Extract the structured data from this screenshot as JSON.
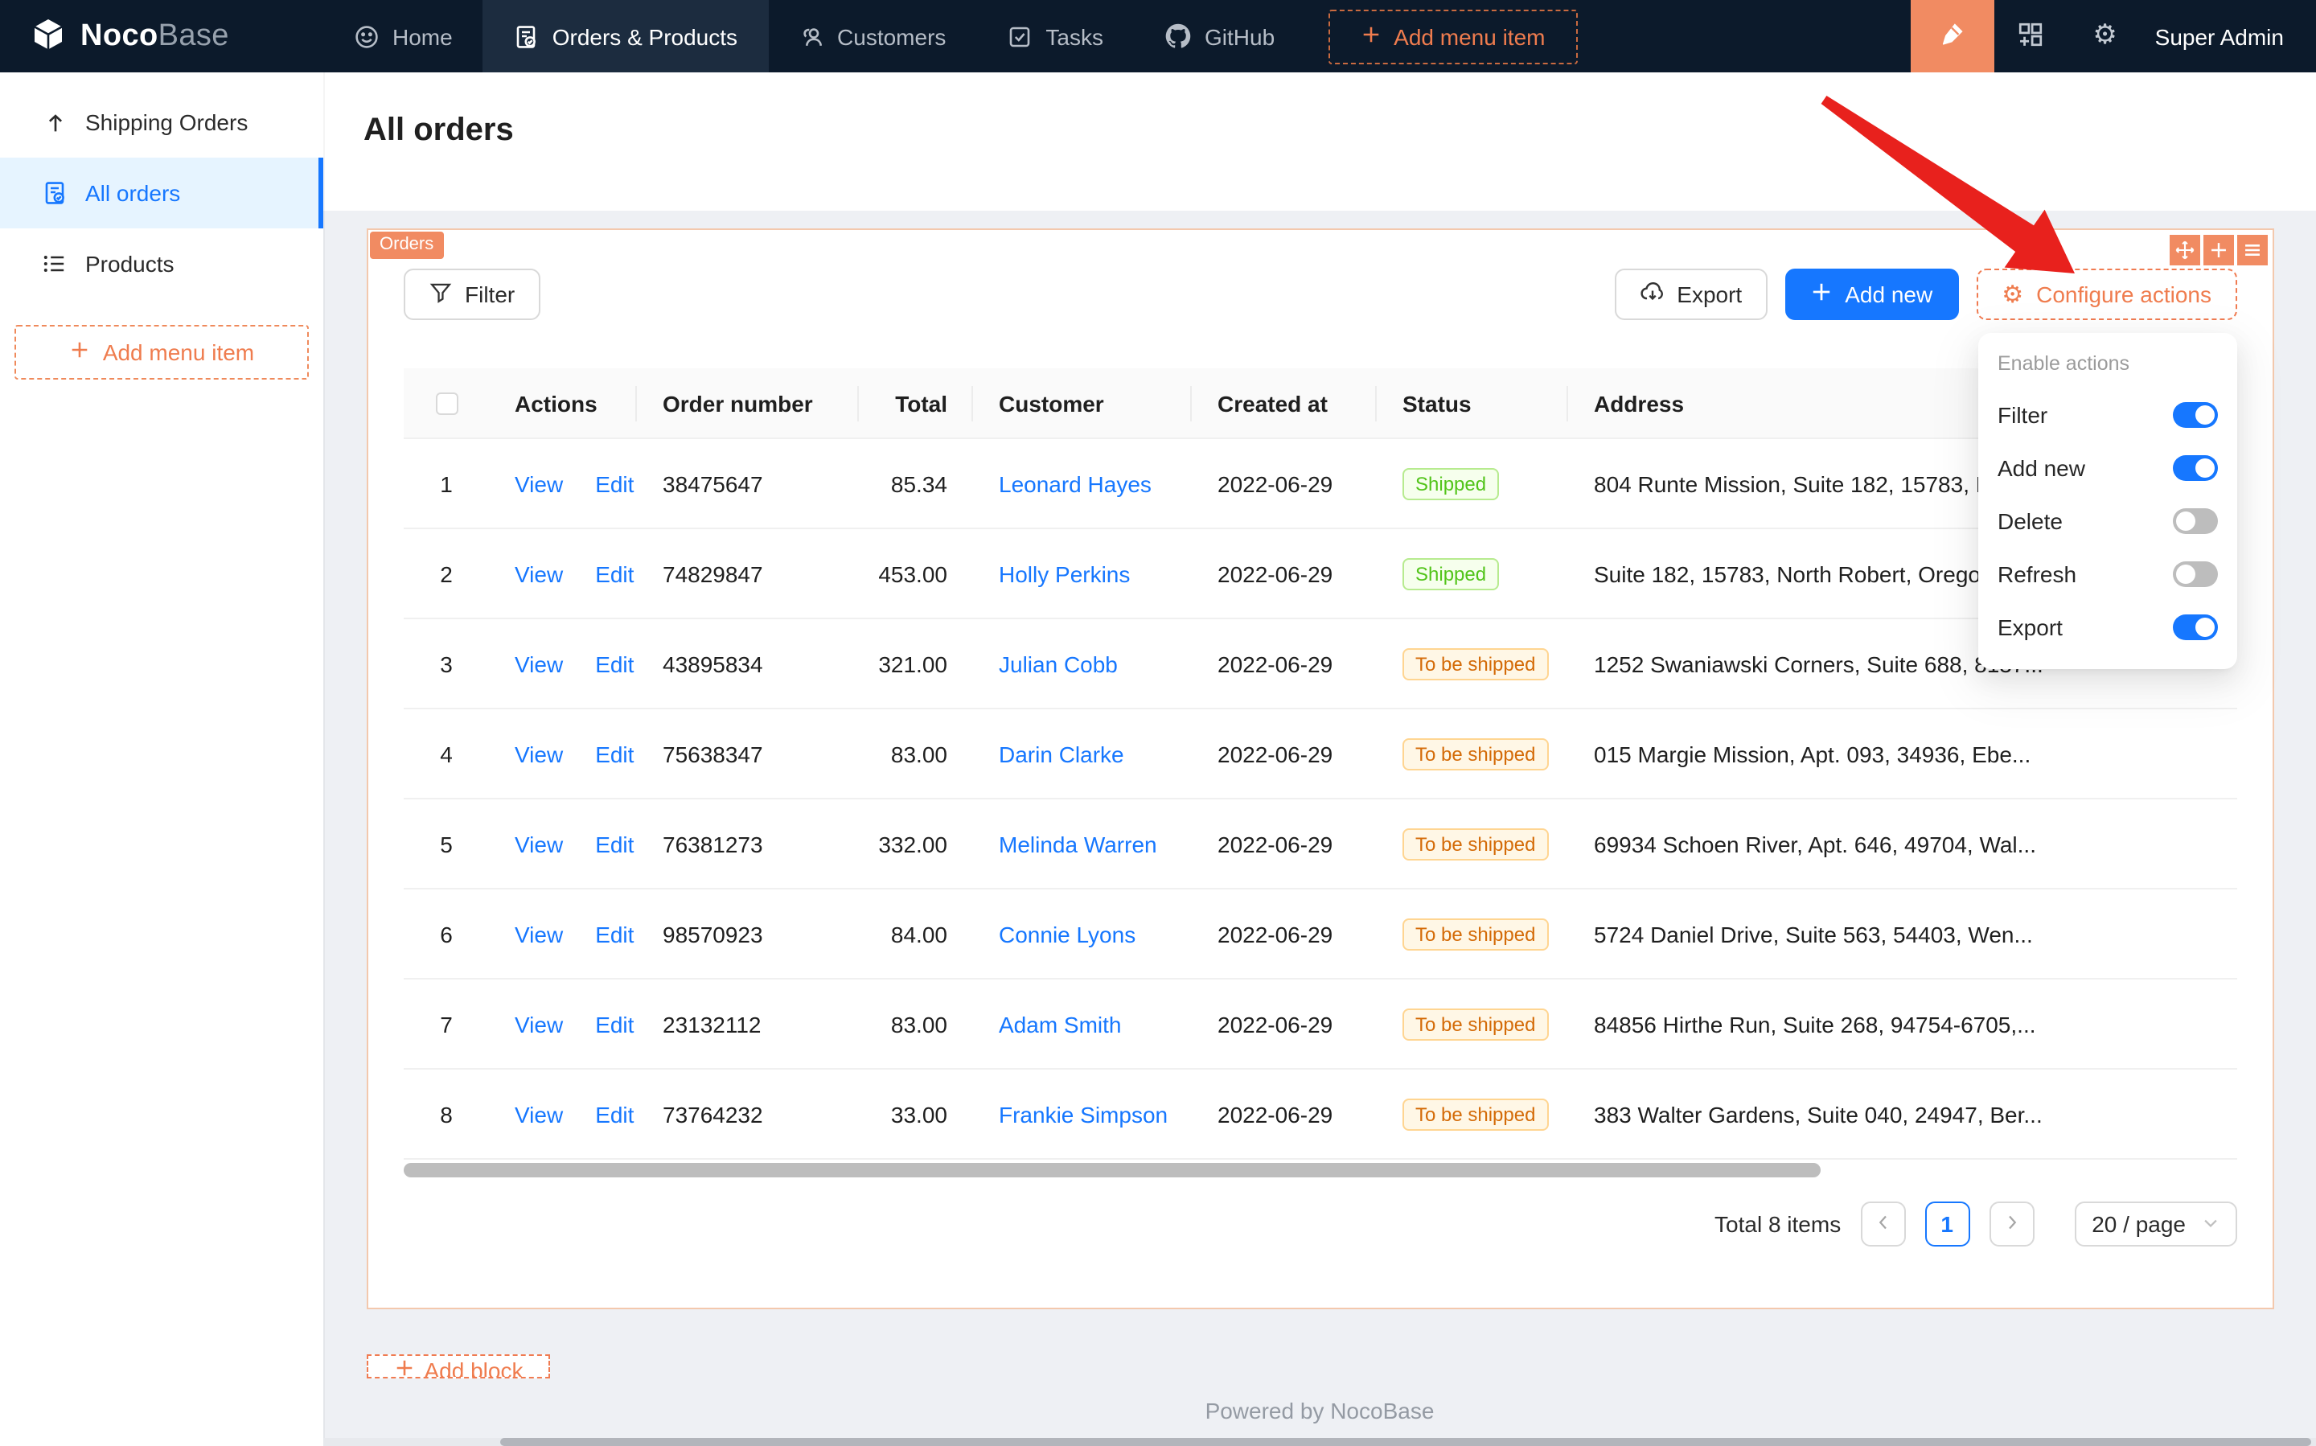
{
  "nav": {
    "logo": {
      "bold": "Noco",
      "light": "Base"
    },
    "items": [
      {
        "label": "Home",
        "icon": "smiley-icon",
        "active": false
      },
      {
        "label": "Orders & Products",
        "icon": "order-doc-icon",
        "active": true
      },
      {
        "label": "Customers",
        "icon": "people-icon",
        "active": false
      },
      {
        "label": "Tasks",
        "icon": "task-check-icon",
        "active": false
      },
      {
        "label": "GitHub",
        "icon": "github-icon",
        "active": false
      }
    ],
    "add_menu_item_label": "Add menu item",
    "user": "Super Admin"
  },
  "sidebar": {
    "items": [
      {
        "label": "Shipping Orders",
        "icon": "arrow-up-icon",
        "active": false
      },
      {
        "label": "All orders",
        "icon": "file-done-icon",
        "active": true
      },
      {
        "label": "Products",
        "icon": "list-icon",
        "active": false
      }
    ],
    "add_menu_item_label": "Add menu item"
  },
  "page": {
    "title": "All orders"
  },
  "block": {
    "tag": "Orders",
    "toolbar": {
      "filter_label": "Filter",
      "export_label": "Export",
      "add_new_label": "Add new",
      "configure_actions_label": "Configure actions"
    },
    "table": {
      "columns": [
        "",
        "Actions",
        "Order number",
        "Total",
        "Customer",
        "Created at",
        "Status",
        "Address"
      ],
      "action_labels": [
        "View",
        "Edit"
      ],
      "rows": [
        {
          "index": "1",
          "order_number": "38475647",
          "total": "85.34",
          "customer": "Leonard Hayes",
          "created_at": "2022-06-29",
          "status": "Shipped",
          "status_type": "green",
          "address": "804 Runte Mission, Suite 182, 15783, N"
        },
        {
          "index": "2",
          "order_number": "74829847",
          "total": "453.00",
          "customer": "Holly Perkins",
          "created_at": "2022-06-29",
          "status": "Shipped",
          "status_type": "green",
          "address": "Suite 182, 15783, North Robert, Oregon"
        },
        {
          "index": "3",
          "order_number": "43895834",
          "total": "321.00",
          "customer": "Julian Cobb",
          "created_at": "2022-06-29",
          "status": "To be shipped",
          "status_type": "orange",
          "address": "1252 Swaniawski Corners, Suite 688, 8137..."
        },
        {
          "index": "4",
          "order_number": "75638347",
          "total": "83.00",
          "customer": "Darin Clarke",
          "created_at": "2022-06-29",
          "status": "To be shipped",
          "status_type": "orange",
          "address": "015 Margie Mission, Apt. 093, 34936, Ebe..."
        },
        {
          "index": "5",
          "order_number": "76381273",
          "total": "332.00",
          "customer": "Melinda Warren",
          "created_at": "2022-06-29",
          "status": "To be shipped",
          "status_type": "orange",
          "address": "69934 Schoen River, Apt. 646, 49704, Wal..."
        },
        {
          "index": "6",
          "order_number": "98570923",
          "total": "84.00",
          "customer": "Connie Lyons",
          "created_at": "2022-06-29",
          "status": "To be shipped",
          "status_type": "orange",
          "address": "5724 Daniel Drive, Suite 563, 54403, Wen..."
        },
        {
          "index": "7",
          "order_number": "23132112",
          "total": "83.00",
          "customer": "Adam Smith",
          "created_at": "2022-06-29",
          "status": "To be shipped",
          "status_type": "orange",
          "address": "84856 Hirthe Run, Suite 268, 94754-6705,..."
        },
        {
          "index": "8",
          "order_number": "73764232",
          "total": "33.00",
          "customer": "Frankie Simpson",
          "created_at": "2022-06-29",
          "status": "To be shipped",
          "status_type": "orange",
          "address": "383 Walter Gardens, Suite 040, 24947, Ber..."
        }
      ]
    },
    "pagination": {
      "total_label": "Total 8 items",
      "current_page": "1",
      "page_size_label": "20 / page"
    }
  },
  "dropdown": {
    "title": "Enable actions",
    "items": [
      {
        "label": "Filter",
        "on": true
      },
      {
        "label": "Add new",
        "on": true
      },
      {
        "label": "Delete",
        "on": false
      },
      {
        "label": "Refresh",
        "on": false
      },
      {
        "label": "Export",
        "on": true
      }
    ]
  },
  "add_block_label": "Add block",
  "footer": "Powered by NocoBase",
  "colors": {
    "nav_bg": "#0c1a2b",
    "accent_orange": "#f18b62",
    "dashed_orange": "#f07b51",
    "primary_blue": "#1677ff",
    "active_sidebar_bg": "#e6f4ff",
    "badge_green": "#52c41a",
    "badge_orange": "#d46b08",
    "red_arrow": "#e8211d",
    "content_bg": "#eef0f4"
  }
}
